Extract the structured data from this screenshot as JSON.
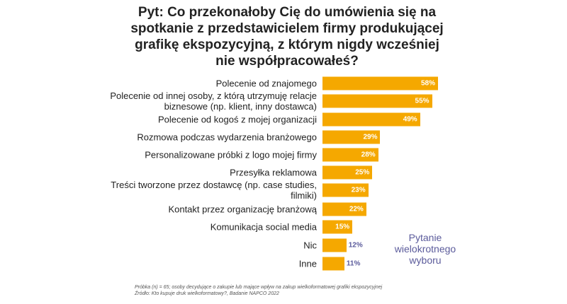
{
  "chart_data": {
    "type": "hbar",
    "title": "Pyt: Co przekonałoby Cię do umówienia się na spotkanie z przedstawicielem firmy produkującej grafikę ekspozycyjną, z którym nigdy wcześniej nie współpracowałeś?",
    "categories": [
      "Polecenie od znajomego",
      "Polecenie od innej osoby, z którą utrzymuję relacje biznesowe (np. klient, inny dostawca)",
      "Polecenie od kogoś z mojej organizacji",
      "Rozmowa podczas wydarzenia branżowego",
      "Personalizowane próbki z logo mojej firmy",
      "Przesyłka reklamowa",
      "Treści tworzone przez dostawcę (np. case studies, filmiki)",
      "Kontakt przez organizację branżową",
      "Komunikacja social media",
      "Nic",
      "Inne"
    ],
    "values": [
      58,
      55,
      49,
      29,
      28,
      25,
      23,
      22,
      15,
      12,
      11
    ],
    "value_labels": [
      "58%",
      "55%",
      "49%",
      "29%",
      "28%",
      "25%",
      "23%",
      "22%",
      "15%",
      "12%",
      "11%"
    ],
    "color": "#f5a800",
    "annotation": "Pytanie wielokrotnego wyboru",
    "footnotes": [
      "Próbka (n) = 65; osoby decydujące o zakupie lub mające wpływ na zakup wielkoformatowej grafiki ekspozycyjnej",
      "Źródło: Kto kupuje druk wielkoformatowy?, Badanie NAPCO 2022"
    ]
  }
}
